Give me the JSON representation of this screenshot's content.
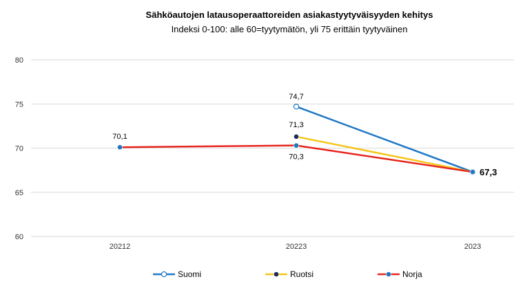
{
  "chart_data": {
    "type": "line",
    "title": "Sähköautojen latausoperaattoreiden asiakastyytyväisyyden kehitys",
    "subtitle": "Indeksi 0-100: alle 60=tyytymätön, yli 75 erittäin tyytyväinen",
    "categories": [
      "20212",
      "20223",
      "2023"
    ],
    "ylim": [
      60,
      80
    ],
    "yticks": [
      "60",
      "65",
      "70",
      "75",
      "80"
    ],
    "grid": true,
    "legend_position": "bottom",
    "series": [
      {
        "name": "Suomi",
        "color": "#1f77c4",
        "marker": "open",
        "values": [
          null,
          74.7,
          67.3
        ],
        "labels": [
          "",
          "74,7",
          ""
        ]
      },
      {
        "name": "Ruotsi",
        "color": "#f5c518",
        "marker": "navy",
        "values": [
          null,
          71.3,
          67.3
        ],
        "labels": [
          "",
          "71,3",
          ""
        ]
      },
      {
        "name": "Norja",
        "color": "#e8231b",
        "marker": "blue",
        "values": [
          70.1,
          70.3,
          67.3
        ],
        "labels": [
          "70,1",
          "70,3",
          "67,3"
        ]
      }
    ]
  }
}
